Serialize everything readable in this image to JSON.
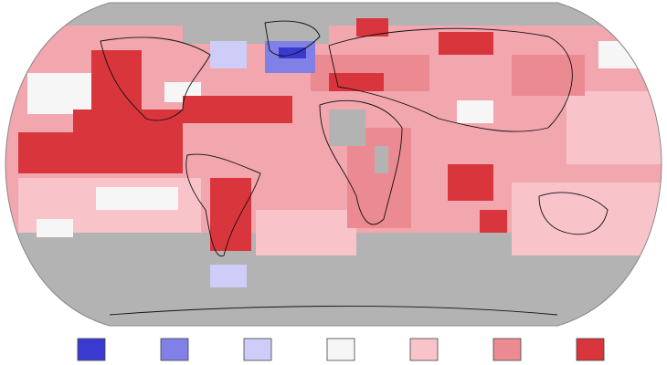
{
  "legend": {
    "colors": [
      "#3a3ad0",
      "#8080e6",
      "#cdcdf7",
      "#f6f6f6",
      "#f9c3ca",
      "#ec8a92",
      "#d9353d"
    ]
  }
}
